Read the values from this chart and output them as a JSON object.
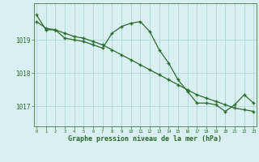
{
  "line1_x": [
    0,
    1,
    2,
    3,
    4,
    5,
    6,
    7,
    8,
    9,
    10,
    11,
    12,
    13,
    14,
    15,
    16,
    17,
    18,
    19,
    20,
    21,
    22,
    23
  ],
  "line1_y": [
    1019.75,
    1019.3,
    1019.3,
    1019.05,
    1019.0,
    1018.95,
    1018.85,
    1018.75,
    1019.2,
    1019.4,
    1019.5,
    1019.55,
    1019.25,
    1018.7,
    1018.3,
    1017.8,
    1017.45,
    1017.1,
    1017.1,
    1017.05,
    1016.85,
    1017.05,
    1017.35,
    1017.1
  ],
  "line2_x": [
    0,
    1,
    2,
    3,
    4,
    5,
    6,
    7,
    8,
    9,
    10,
    11,
    12,
    13,
    14,
    15,
    16,
    17,
    18,
    19,
    20,
    21,
    22,
    23
  ],
  "line2_y": [
    1019.55,
    1019.35,
    1019.3,
    1019.2,
    1019.1,
    1019.05,
    1018.95,
    1018.85,
    1018.7,
    1018.55,
    1018.4,
    1018.25,
    1018.1,
    1017.95,
    1017.8,
    1017.65,
    1017.5,
    1017.35,
    1017.25,
    1017.15,
    1017.05,
    1016.95,
    1016.9,
    1016.85
  ],
  "line_color": "#2d6a2d",
  "bg_color": "#d8f0f0",
  "grid_color": "#b0d8d8",
  "axis_color": "#5a8a5a",
  "xlabel": "Graphe pression niveau de la mer (hPa)",
  "yticks": [
    1017,
    1018,
    1019
  ],
  "xticks": [
    0,
    1,
    2,
    3,
    4,
    5,
    6,
    7,
    8,
    9,
    10,
    11,
    12,
    13,
    14,
    15,
    16,
    17,
    18,
    19,
    20,
    21,
    22,
    23
  ],
  "ylim": [
    1016.4,
    1020.1
  ],
  "xlim": [
    -0.3,
    23.3
  ]
}
